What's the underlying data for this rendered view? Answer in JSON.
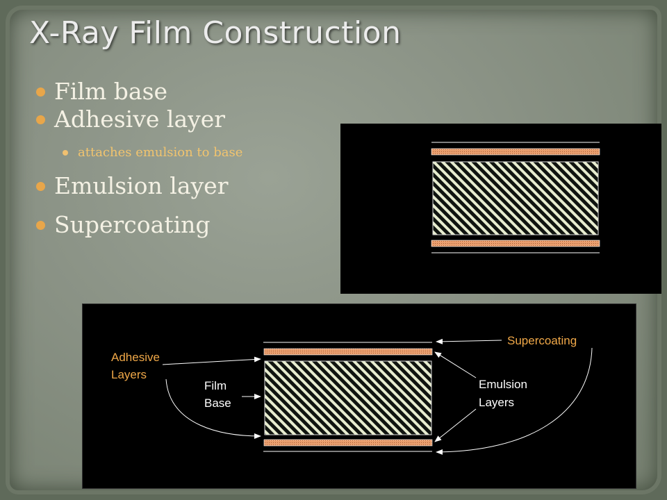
{
  "slide": {
    "title": "X-Ray Film Construction",
    "bullets": [
      {
        "text": "Film base"
      },
      {
        "text": "Adhesive layer"
      },
      {
        "text": "attaches emulsion to base"
      },
      {
        "text": "Emulsion layer"
      },
      {
        "text": "Supercoating"
      }
    ]
  },
  "diagram": {
    "labels": {
      "adhesive_line1": "Adhesive",
      "adhesive_line2": "Layers",
      "film_line1": "Film",
      "film_line2": "Base",
      "supercoating": "Supercoating",
      "emulsion_line1": "Emulsion",
      "emulsion_line2": "Layers"
    }
  },
  "colors": {
    "bullet": "#e8a64a",
    "sub_text": "#f2c46e",
    "label_orange": "#f0a848",
    "label_white": "#ffffff",
    "emulsion": "#e9a274"
  }
}
